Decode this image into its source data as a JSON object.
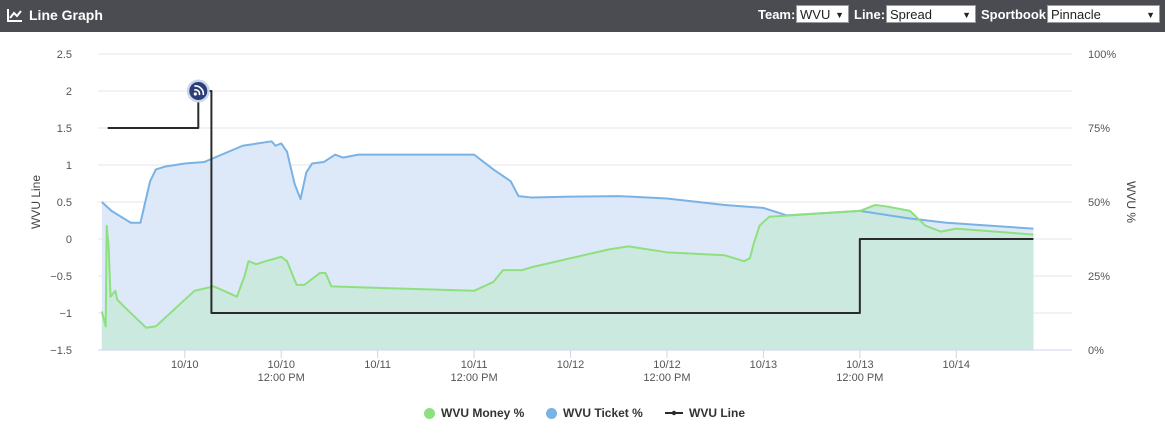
{
  "header": {
    "title": "Line Graph",
    "team_label": "Team:",
    "team_value": "WVU",
    "line_label": "Line:",
    "line_value": "Spread",
    "sportsbook_label": "Sportbook:",
    "sportsbook_value": "Pinnacle",
    "icon": "line-chart-icon",
    "bar_color": "#4a4c52"
  },
  "chart_data": {
    "type": "line",
    "ylabel": "WVU Line",
    "y2label": "WVU %",
    "ylim": [
      -1.5,
      2.5
    ],
    "y2lim": [
      0,
      100
    ],
    "yticks": [
      "2.5",
      "2",
      "1.5",
      "1",
      "0.5",
      "0",
      "−0.5",
      "−1",
      "−1.5"
    ],
    "y2ticks": [
      "100%",
      "75%",
      "50%",
      "25%",
      "0%"
    ],
    "xlim": [
      -0.45,
      4.6
    ],
    "xticks": [
      {
        "x": 0,
        "l1": "10/10",
        "l2": ""
      },
      {
        "x": 0.5,
        "l1": "10/10",
        "l2": "12:00 PM"
      },
      {
        "x": 1,
        "l1": "10/11",
        "l2": ""
      },
      {
        "x": 1.5,
        "l1": "10/11",
        "l2": "12:00 PM"
      },
      {
        "x": 2,
        "l1": "10/12",
        "l2": ""
      },
      {
        "x": 2.5,
        "l1": "10/12",
        "l2": "12:00 PM"
      },
      {
        "x": 3,
        "l1": "10/13",
        "l2": ""
      },
      {
        "x": 3.5,
        "l1": "10/13",
        "l2": "12:00 PM"
      },
      {
        "x": 4,
        "l1": "10/14",
        "l2": ""
      }
    ],
    "grid": true,
    "legend_position": "bottom",
    "series": [
      {
        "name": "WVU Money %",
        "color": "#8ee07f",
        "fill": "#cbe9df",
        "axis": "right",
        "points": [
          [
            -0.43,
            13
          ],
          [
            -0.41,
            8
          ],
          [
            -0.405,
            42
          ],
          [
            -0.395,
            35
          ],
          [
            -0.385,
            18
          ],
          [
            -0.36,
            20
          ],
          [
            -0.35,
            17
          ],
          [
            -0.32,
            15
          ],
          [
            -0.2,
            7.5
          ],
          [
            -0.15,
            8
          ],
          [
            -0.1,
            11
          ],
          [
            0.05,
            20
          ],
          [
            0.15,
            21.5
          ],
          [
            0.22,
            19.5
          ],
          [
            0.27,
            18
          ],
          [
            0.31,
            25
          ],
          [
            0.33,
            30
          ],
          [
            0.37,
            29
          ],
          [
            0.42,
            30
          ],
          [
            0.5,
            31.5
          ],
          [
            0.53,
            30
          ],
          [
            0.58,
            22
          ],
          [
            0.62,
            22
          ],
          [
            0.7,
            26
          ],
          [
            0.73,
            26
          ],
          [
            0.76,
            21.5
          ],
          [
            1.0,
            21
          ],
          [
            1.5,
            20
          ],
          [
            1.6,
            23
          ],
          [
            1.65,
            27
          ],
          [
            1.75,
            27
          ],
          [
            1.8,
            28
          ],
          [
            2.2,
            34
          ],
          [
            2.3,
            35
          ],
          [
            2.5,
            33
          ],
          [
            2.8,
            32
          ],
          [
            2.9,
            30
          ],
          [
            2.93,
            31
          ],
          [
            2.95,
            36
          ],
          [
            2.98,
            42
          ],
          [
            3.03,
            45
          ],
          [
            3.5,
            47
          ],
          [
            3.58,
            49
          ],
          [
            3.64,
            48.5
          ],
          [
            3.76,
            47
          ],
          [
            3.84,
            42
          ],
          [
            3.92,
            40
          ],
          [
            4.0,
            41
          ],
          [
            4.4,
            39
          ]
        ]
      },
      {
        "name": "WVU Ticket %",
        "color": "#79b2e5",
        "fill": "#dde9f8",
        "axis": "right",
        "points": [
          [
            -0.43,
            50
          ],
          [
            -0.38,
            47
          ],
          [
            -0.28,
            43
          ],
          [
            -0.23,
            43
          ],
          [
            -0.18,
            57
          ],
          [
            -0.15,
            61
          ],
          [
            -0.1,
            62
          ],
          [
            0.0,
            63
          ],
          [
            0.1,
            63.5
          ],
          [
            0.3,
            69
          ],
          [
            0.45,
            70.5
          ],
          [
            0.47,
            69
          ],
          [
            0.5,
            69.8
          ],
          [
            0.53,
            67
          ],
          [
            0.57,
            56
          ],
          [
            0.6,
            51
          ],
          [
            0.63,
            60
          ],
          [
            0.66,
            63
          ],
          [
            0.72,
            63.5
          ],
          [
            0.78,
            66
          ],
          [
            0.82,
            65
          ],
          [
            0.9,
            66
          ],
          [
            1.0,
            66
          ],
          [
            1.5,
            66
          ],
          [
            1.6,
            61
          ],
          [
            1.69,
            57
          ],
          [
            1.73,
            52
          ],
          [
            1.8,
            51.5
          ],
          [
            2.0,
            51.8
          ],
          [
            2.25,
            52
          ],
          [
            2.5,
            51.2
          ],
          [
            2.8,
            49
          ],
          [
            3.0,
            48
          ],
          [
            3.12,
            45.5
          ],
          [
            3.5,
            47
          ],
          [
            3.75,
            44.5
          ],
          [
            3.95,
            43
          ],
          [
            4.4,
            41
          ]
        ]
      },
      {
        "name": "WVU Line",
        "color": "#2b2b2b",
        "axis": "left",
        "points": [
          [
            -0.4,
            1.5
          ],
          [
            0.07,
            1.5
          ],
          [
            0.07,
            2
          ],
          [
            0.138,
            2
          ],
          [
            0.138,
            -1
          ],
          [
            3.5,
            -1
          ],
          [
            3.5,
            0
          ],
          [
            4.4,
            0
          ]
        ]
      }
    ],
    "marker": {
      "x": 0.07,
      "y": 2,
      "icon": "feed-icon",
      "color": "#2c3e77"
    }
  },
  "legend": [
    {
      "label": "WVU Money %",
      "color": "#8ee07f",
      "type": "dot"
    },
    {
      "label": "WVU Ticket %",
      "color": "#79b2e5",
      "type": "dot"
    },
    {
      "label": "WVU Line",
      "color": "#2b2b2b",
      "type": "line"
    }
  ]
}
